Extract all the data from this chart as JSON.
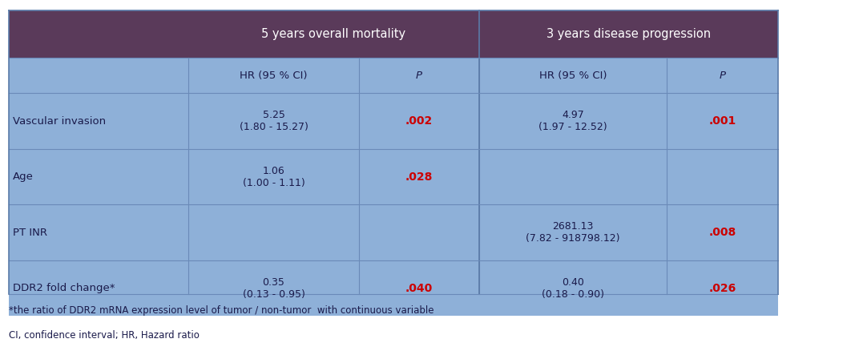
{
  "title_row": [
    "5 years overall mortality",
    "3 years disease progression"
  ],
  "header_row": [
    "",
    "HR (95 % CI)",
    "P",
    "HR (95 % CI)",
    "P"
  ],
  "rows": [
    {
      "label": "Vascular invasion",
      "om_hr": "5.25\n(1.80 - 15.27)",
      "om_p": ".002",
      "dp_hr": "4.97\n(1.97 - 12.52)",
      "dp_p": ".001"
    },
    {
      "label": "Age",
      "om_hr": "1.06\n(1.00 - 1.11)",
      "om_p": ".028",
      "dp_hr": "",
      "dp_p": ""
    },
    {
      "label": "PT INR",
      "om_hr": "",
      "om_p": "",
      "dp_hr": "2681.13\n(7.82 - 918798.12)",
      "dp_p": ".008"
    },
    {
      "label": "DDR2 fold change*",
      "om_hr": "0.35\n(0.13 - 0.95)",
      "om_p": ".040",
      "dp_hr": "0.40\n(0.18 - 0.90)",
      "dp_p": ".026"
    }
  ],
  "footnote1": "*the ratio of DDR2 mRNA expression level of tumor / non-tumor  with continuous variable",
  "footnote2": "CI, confidence interval; HR, Hazard ratio",
  "bg_color": "#7B9EC8",
  "header_bg": "#5A3A5A",
  "cell_bg": "#8EB0D8",
  "line_color": "#AAAACC",
  "text_color_dark": "#1A1A4A",
  "text_color_red": "#CC0000",
  "text_color_white": "#FFFFFF",
  "fig_bg": "#FFFFFF"
}
